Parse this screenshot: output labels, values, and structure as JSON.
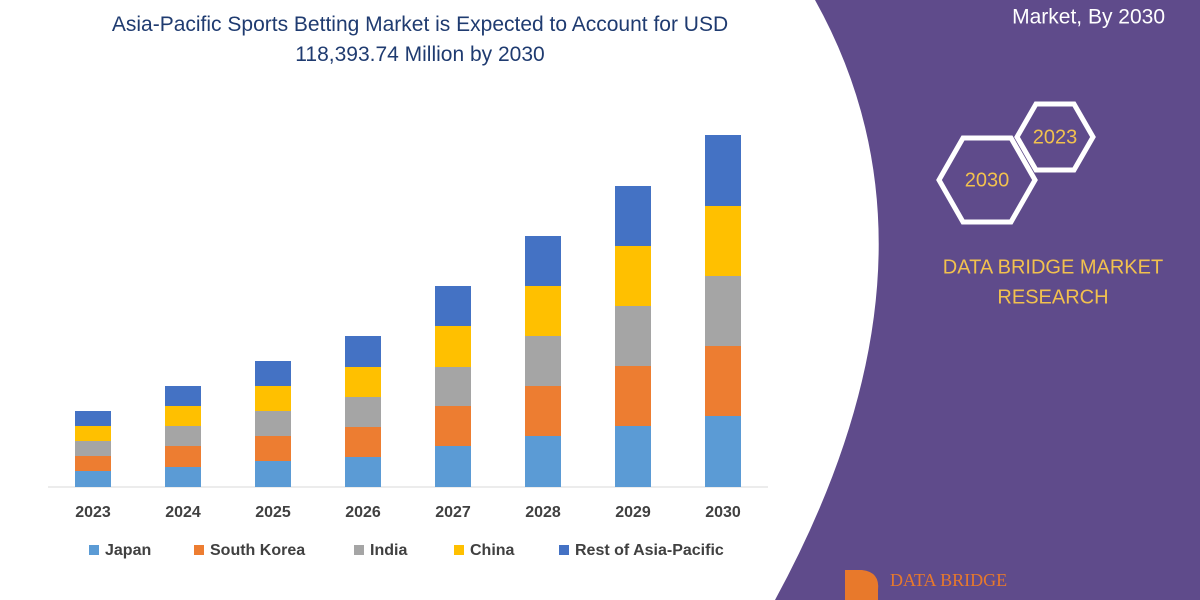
{
  "chart_data": {
    "type": "bar",
    "stacked": true,
    "title": "Asia-Pacific Sports Betting Market is Expected to Account for USD 118,393.74 Million by 2030",
    "categories": [
      "2023",
      "2024",
      "2025",
      "2026",
      "2027",
      "2028",
      "2029",
      "2030"
    ],
    "series": [
      {
        "name": "Japan",
        "color": "#5b9bd5",
        "values": [
          16,
          20,
          26,
          30,
          41,
          51,
          61,
          71
        ]
      },
      {
        "name": "South Korea",
        "color": "#ed7d31",
        "values": [
          15,
          21,
          25,
          30,
          40,
          50,
          60,
          70
        ]
      },
      {
        "name": "India",
        "color": "#a5a5a5",
        "values": [
          15,
          20,
          25,
          30,
          39,
          50,
          60,
          70
        ]
      },
      {
        "name": "China",
        "color": "#ffc000",
        "values": [
          15,
          20,
          25,
          30,
          41,
          50,
          60,
          70
        ]
      },
      {
        "name": "Rest of Asia-Pacific",
        "color": "#4472c4",
        "values": [
          15,
          20,
          25,
          31,
          40,
          50,
          60,
          71
        ]
      }
    ],
    "ylim": [
      0,
      360
    ],
    "grid": false,
    "legend": "bottom"
  },
  "panel": {
    "caption": "Market, By 2030",
    "hex_labels": [
      "2023",
      "2030"
    ],
    "brand": [
      "DATA BRIDGE MARKET",
      "RESEARCH"
    ],
    "logo": "DATA BRIDGE"
  }
}
